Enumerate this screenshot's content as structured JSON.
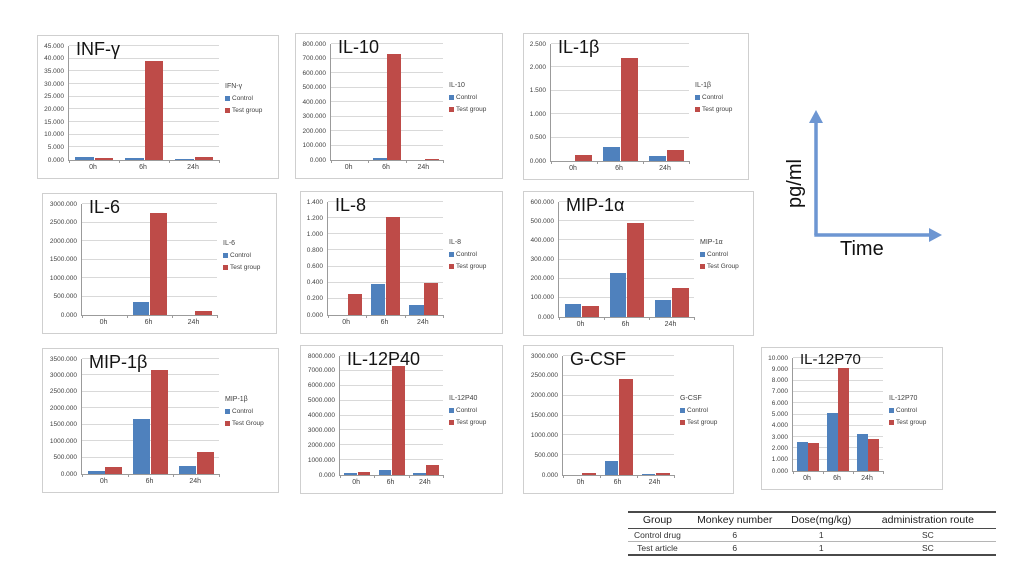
{
  "colors": {
    "control": "#4F81BD",
    "test": "#BE4B48",
    "arrow": "#6D96D2",
    "grid": "#D9D9D9",
    "axis": "#9B9B9B",
    "chart_border": "#CFCFCF"
  },
  "diagram": {
    "y_label": "pg/ml",
    "x_label": "Time"
  },
  "table": {
    "headers": [
      "Group",
      "Monkey number",
      "Dose(mg/kg)",
      "administration route"
    ],
    "rows": [
      [
        "Control drug",
        "6",
        "1",
        "SC"
      ],
      [
        "Test article",
        "6",
        "1",
        "SC"
      ]
    ]
  },
  "chart_data": [
    {
      "type": "bar",
      "title": "INF-γ",
      "legend_title": "IFN-γ",
      "xlabel": "",
      "ylabel": "",
      "categories": [
        "0h",
        "6h",
        "24h"
      ],
      "ylim": [
        0,
        45
      ],
      "ytick_step": 5,
      "series": [
        {
          "name": "Control",
          "color": "control",
          "values": [
            1.0,
            0.6,
            0.5
          ]
        },
        {
          "name": "Test group",
          "color": "test",
          "values": [
            0.8,
            39.2,
            1.0
          ]
        }
      ]
    },
    {
      "type": "bar",
      "title": "IL-10",
      "legend_title": "IL-10",
      "xlabel": "",
      "ylabel": "",
      "categories": [
        "0h",
        "6h",
        "24h"
      ],
      "ylim": [
        0,
        800
      ],
      "ytick_step": 100,
      "series": [
        {
          "name": "Control",
          "color": "control",
          "values": [
            0,
            15,
            0
          ]
        },
        {
          "name": "Test group",
          "color": "test",
          "values": [
            0,
            730,
            8
          ]
        }
      ]
    },
    {
      "type": "bar",
      "title": "IL-1β",
      "legend_title": "IL-1β",
      "xlabel": "",
      "ylabel": "",
      "categories": [
        "0h",
        "6h",
        "24h"
      ],
      "ylim": [
        0,
        2.5
      ],
      "ytick_step": 0.5,
      "series": [
        {
          "name": "Control",
          "color": "control",
          "values": [
            0,
            0.3,
            0.1
          ]
        },
        {
          "name": "Test group",
          "color": "test",
          "values": [
            0.13,
            2.2,
            0.23
          ]
        }
      ]
    },
    {
      "type": "bar",
      "title": "IL-6",
      "legend_title": "IL-6",
      "xlabel": "",
      "ylabel": "",
      "categories": [
        "0h",
        "6h",
        "24h"
      ],
      "ylim": [
        0,
        3000
      ],
      "ytick_step": 500,
      "series": [
        {
          "name": "Control",
          "color": "control",
          "values": [
            0,
            340,
            0
          ]
        },
        {
          "name": "Test group",
          "color": "test",
          "values": [
            0,
            2760,
            120
          ]
        }
      ]
    },
    {
      "type": "bar",
      "title": "IL-8",
      "legend_title": "IL-8",
      "xlabel": "",
      "ylabel": "",
      "categories": [
        "0h",
        "6h",
        "24h"
      ],
      "ylim": [
        0,
        1.4
      ],
      "ytick_step": 0.2,
      "series": [
        {
          "name": "Control",
          "color": "control",
          "values": [
            0,
            0.38,
            0.13
          ]
        },
        {
          "name": "Test group",
          "color": "test",
          "values": [
            0.26,
            1.22,
            0.4
          ]
        }
      ]
    },
    {
      "type": "bar",
      "title": "MIP-1α",
      "legend_title": "MIP-1α",
      "xlabel": "",
      "ylabel": "",
      "categories": [
        "0h",
        "6h",
        "24h"
      ],
      "ylim": [
        0,
        600
      ],
      "ytick_step": 100,
      "series": [
        {
          "name": "Control",
          "color": "control",
          "values": [
            70,
            228,
            87
          ]
        },
        {
          "name": "Test Group",
          "color": "test",
          "values": [
            55,
            490,
            152
          ]
        }
      ]
    },
    {
      "type": "bar",
      "title": "MIP-1β",
      "legend_title": "MIP-1β",
      "xlabel": "",
      "ylabel": "",
      "categories": [
        "0h",
        "6h",
        "24h"
      ],
      "ylim": [
        0,
        3500
      ],
      "ytick_step": 500,
      "series": [
        {
          "name": "Control",
          "color": "control",
          "values": [
            100,
            1660,
            240
          ]
        },
        {
          "name": "Test Group",
          "color": "test",
          "values": [
            220,
            3180,
            660
          ]
        }
      ]
    },
    {
      "type": "bar",
      "title": "IL-12P40",
      "legend_title": "IL-12P40",
      "xlabel": "",
      "ylabel": "",
      "categories": [
        "0h",
        "6h",
        "24h"
      ],
      "ylim": [
        0,
        8000
      ],
      "ytick_step": 1000,
      "series": [
        {
          "name": "Control",
          "color": "control",
          "values": [
            130,
            330,
            120
          ]
        },
        {
          "name": "Test group",
          "color": "test",
          "values": [
            190,
            7300,
            640
          ]
        }
      ]
    },
    {
      "type": "bar",
      "title": "G-CSF",
      "legend_title": "G-CSF",
      "xlabel": "",
      "ylabel": "",
      "categories": [
        "0h",
        "6h",
        "24h"
      ],
      "ylim": [
        0,
        3000
      ],
      "ytick_step": 500,
      "series": [
        {
          "name": "Control",
          "color": "control",
          "values": [
            0,
            350,
            30
          ]
        },
        {
          "name": "Test group",
          "color": "test",
          "values": [
            40,
            2420,
            60
          ]
        }
      ]
    },
    {
      "type": "bar",
      "title": "IL-12P70",
      "legend_title": "IL-12P70",
      "xlabel": "",
      "ylabel": "",
      "categories": [
        "0h",
        "6h",
        "24h"
      ],
      "ylim": [
        0,
        10
      ],
      "ytick_step": 1,
      "series": [
        {
          "name": "Control",
          "color": "control",
          "values": [
            2.55,
            5.15,
            3.3
          ]
        },
        {
          "name": "Test group",
          "color": "test",
          "values": [
            2.45,
            9.1,
            2.8
          ]
        }
      ]
    }
  ]
}
